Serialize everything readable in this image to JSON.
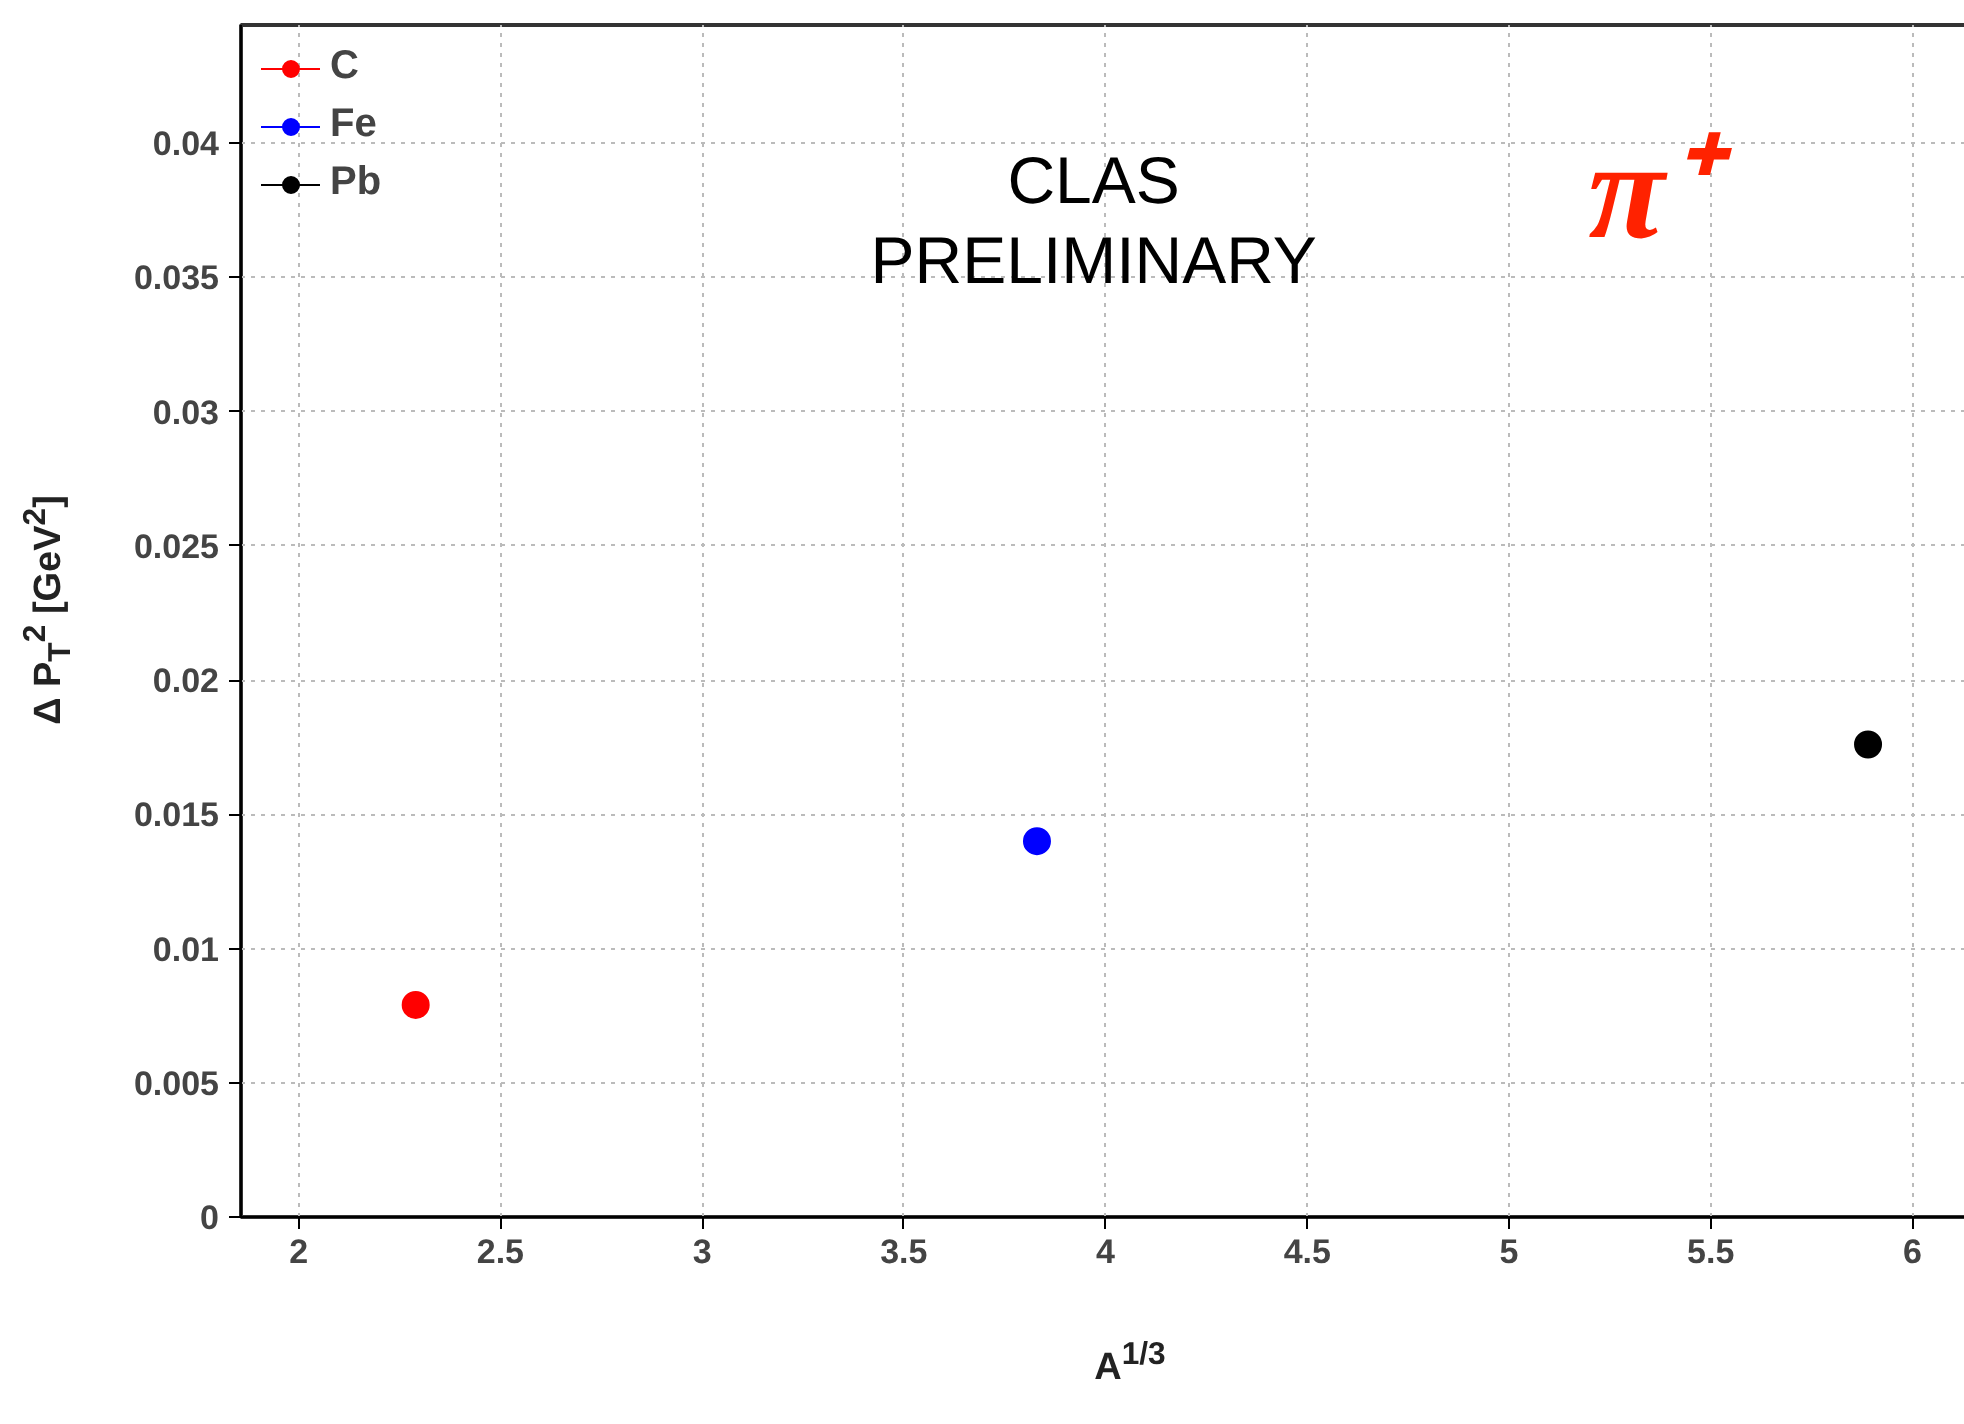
{
  "chart_data": {
    "type": "scatter",
    "xlabel": "A$^{1/3}$",
    "ylabel": "Δ P$_{T}$$^{2}$ [GeV$^{2}$]",
    "annotations": [
      "CLAS\nPRELIMINARY",
      "π⁺"
    ],
    "xlim": [
      1.857,
      6.17
    ],
    "ylim": [
      0,
      0.0444
    ],
    "xticks": [
      2,
      2.5,
      3,
      3.5,
      4,
      4.5,
      5,
      5.5,
      6
    ],
    "yticks": [
      0,
      0.005,
      0.01,
      0.015,
      0.02,
      0.025,
      0.03,
      0.035,
      0.04
    ],
    "grid": true,
    "legend": "top left",
    "marker": "circle",
    "series": [
      {
        "name": "C",
        "color": "#ff0000",
        "x": [
          2.29
        ],
        "values": [
          0.0079
        ]
      },
      {
        "name": "Fe",
        "color": "#0000ff",
        "x": [
          3.83
        ],
        "values": [
          0.014
        ]
      },
      {
        "name": "Pb",
        "color": "#000000",
        "x": [
          5.89
        ],
        "values": [
          0.0176
        ]
      }
    ]
  }
}
